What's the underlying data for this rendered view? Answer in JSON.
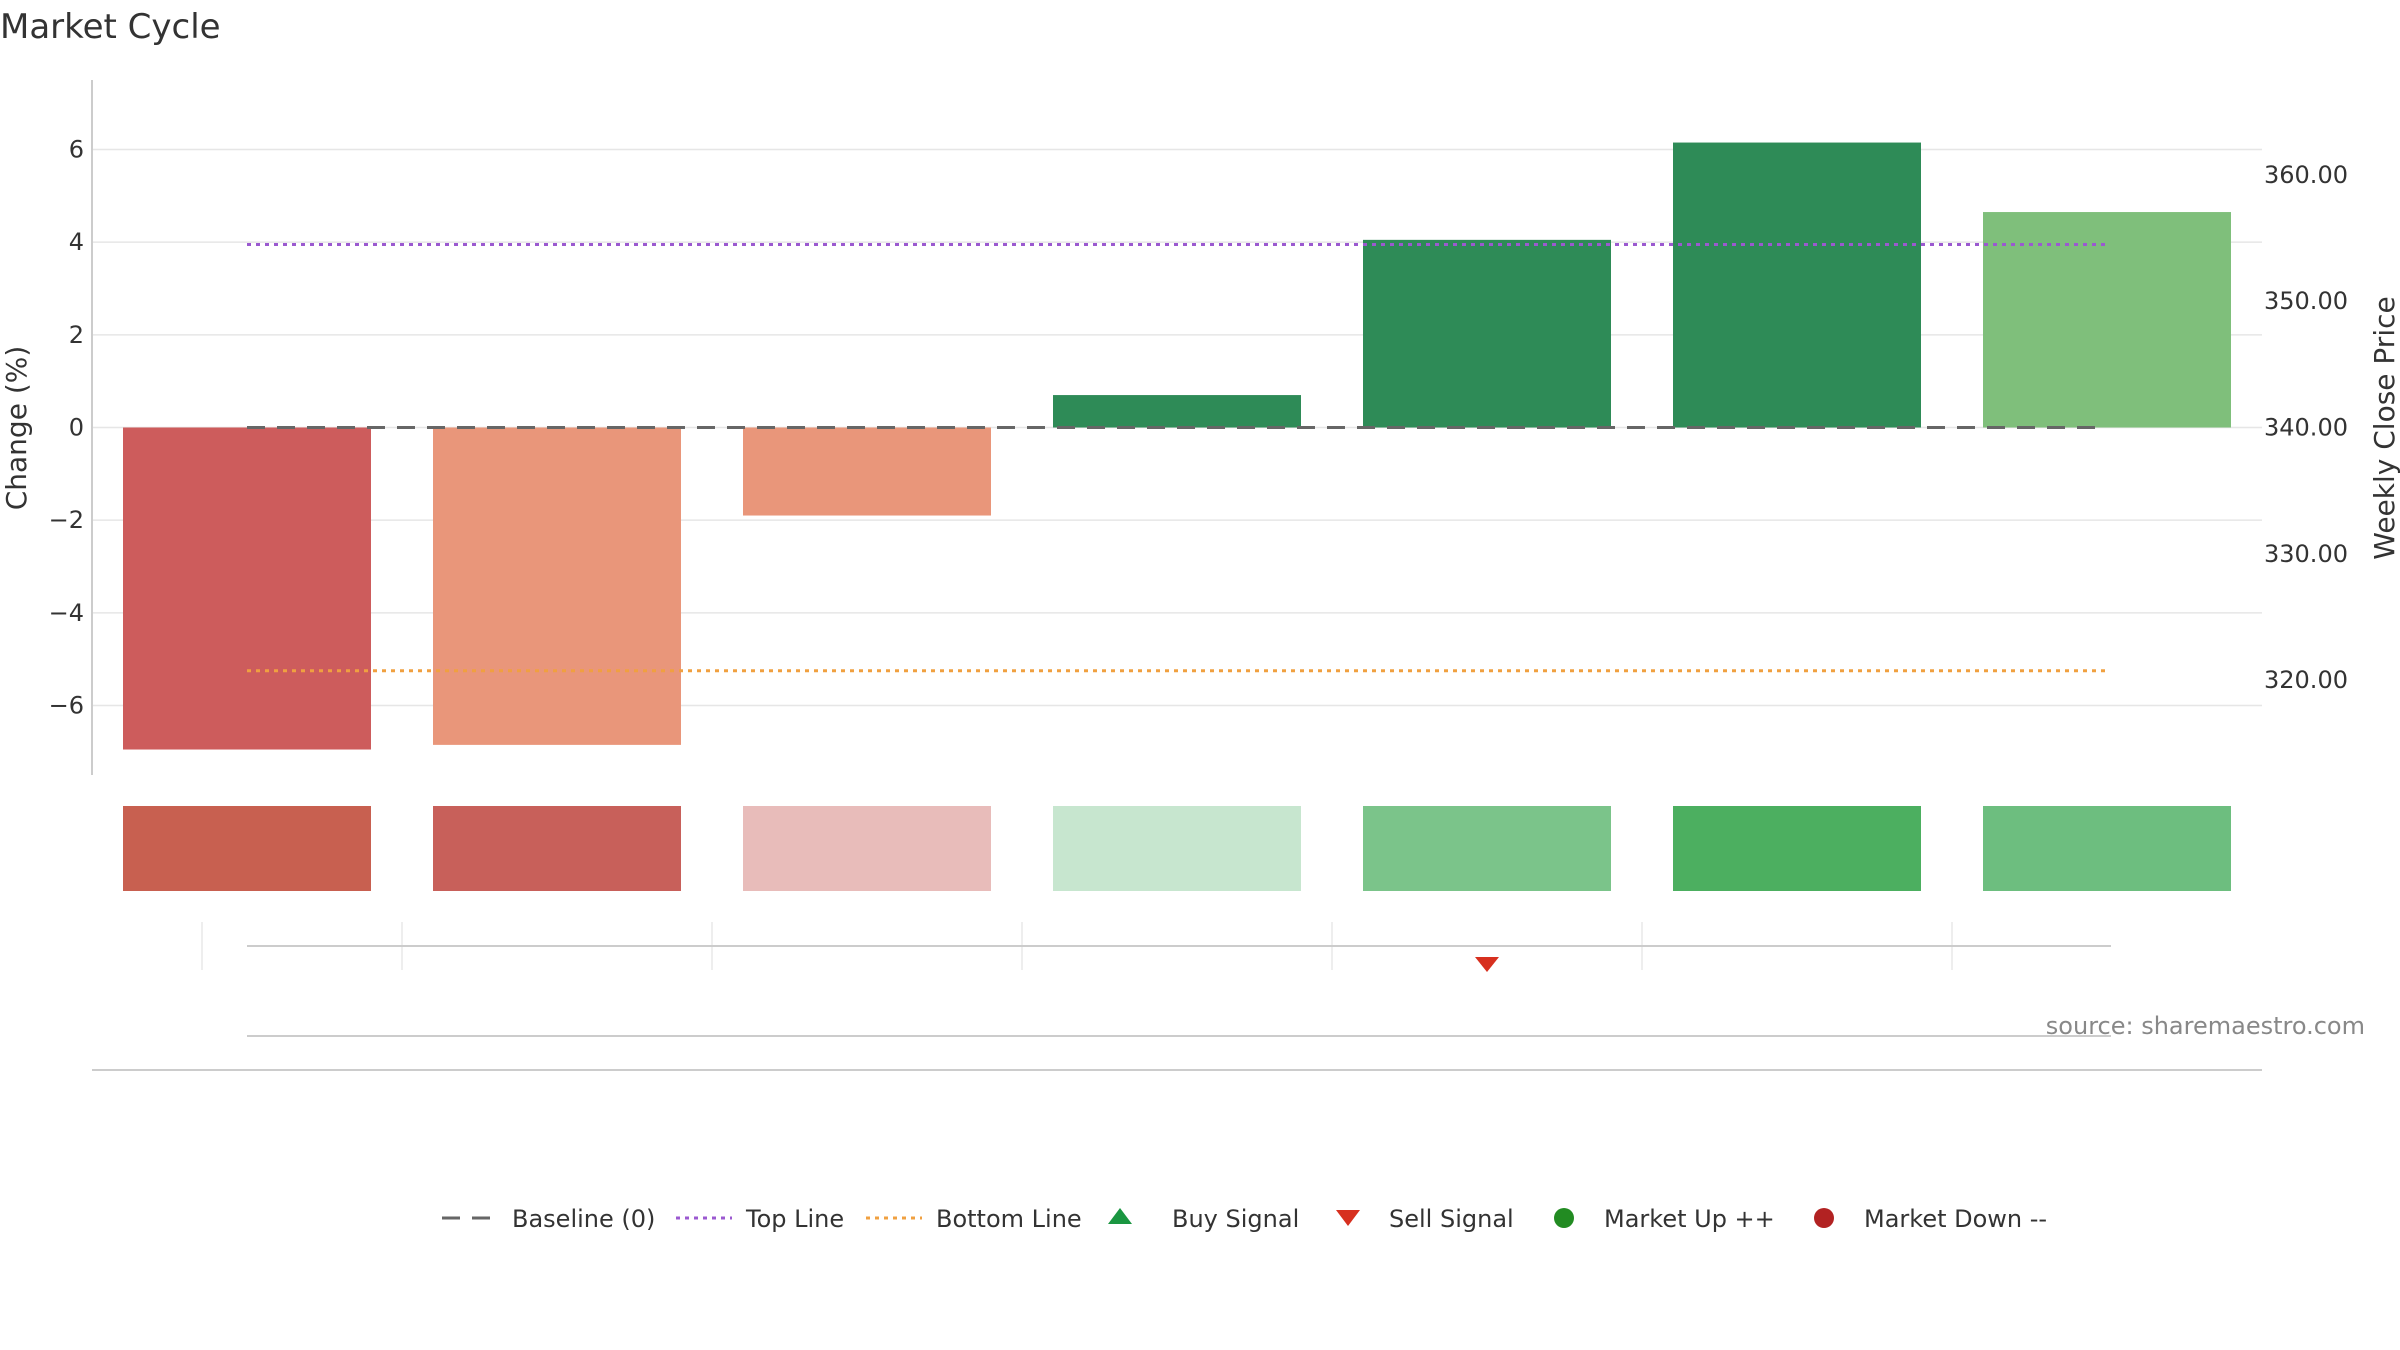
{
  "chart_data": {
    "type": "bar",
    "title": "Market Cycle",
    "ylabel": "Change (%)",
    "y2label": "Weekly Close Price",
    "ylim": [
      -7.5,
      7.5
    ],
    "y_ticks": [
      6,
      4,
      2,
      0,
      -2,
      -4,
      -6
    ],
    "y_tick_labels": [
      "6",
      "4",
      "2",
      "0",
      "−2",
      "−4",
      "−6"
    ],
    "y2lim": [
      312.5,
      367.5
    ],
    "y2_ticks": [
      360,
      350,
      340,
      330,
      320
    ],
    "y2_tick_labels": [
      "360.00",
      "350.00",
      "340.00",
      "330.00",
      "320.00"
    ],
    "series": [
      {
        "values": [
          -6.95,
          -6.85,
          -1.9,
          0.7,
          4.05,
          6.15,
          4.65
        ],
        "colors": [
          "#cd5c5c",
          "#e9967a",
          "#e9967a",
          "#2e8b57",
          "#2e8b57",
          "#2e8b57",
          "#7fbf7b"
        ]
      }
    ],
    "strength_colors": [
      "#c86050",
      "#c8605a",
      "#e8bcba",
      "#c7e6cf",
      "#7bc48a",
      "#4caf60",
      "#6dbe7f"
    ],
    "reference_lines": {
      "baseline": 0,
      "top_line": 3.95,
      "bottom_line": -5.25
    },
    "signals": [
      {
        "type": "sell",
        "bar_index": 4
      }
    ],
    "legend": {
      "position": "bottom-center",
      "items": [
        {
          "label": "Baseline (0)",
          "symbol": "dash",
          "color": "#666666"
        },
        {
          "label": "Top Line",
          "symbol": "dot",
          "color": "#9b59d0"
        },
        {
          "label": "Bottom Line",
          "symbol": "dot",
          "color": "#f0a040"
        },
        {
          "label": "Buy Signal",
          "symbol": "triangle-up",
          "color": "#1a9641"
        },
        {
          "label": "Sell Signal",
          "symbol": "triangle-down",
          "color": "#d7301f"
        },
        {
          "label": "Market Up ++",
          "symbol": "circle",
          "color": "#228b22"
        },
        {
          "label": "Market Down --",
          "symbol": "circle",
          "color": "#b22222"
        }
      ]
    },
    "source": "source: sharemaestro.com"
  }
}
